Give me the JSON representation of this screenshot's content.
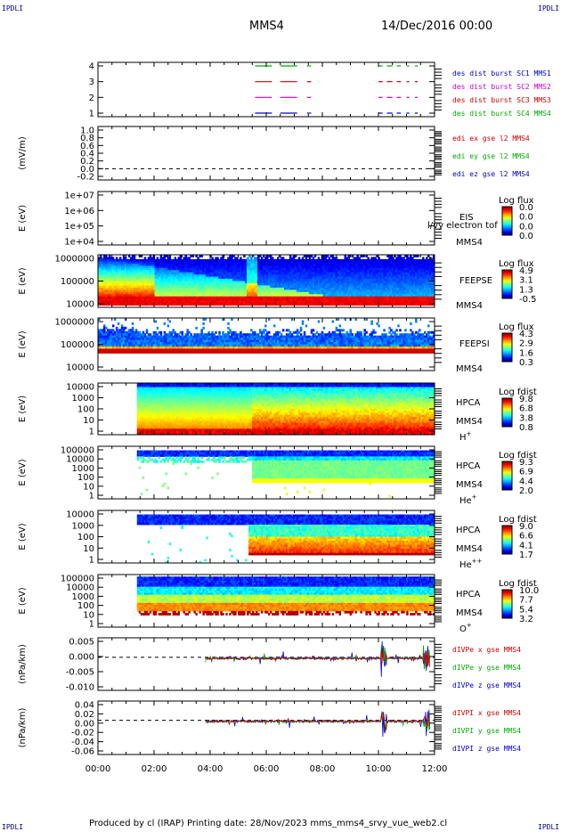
{
  "header": {
    "corner_label": "IPDLI",
    "title_left": "MMS4",
    "title_right": "14/Dec/2016 00:00"
  },
  "footer": "Produced by cl (IRAP)   Printing date: 28/Nov/2023   mms_mms4_srvy_vue_web2.cl",
  "time_axis": [
    "00:00",
    "02:00",
    "04:00",
    "06:00",
    "08:00",
    "10:00",
    "12:00"
  ],
  "panels": [
    {
      "id": "burst",
      "ylabel": "",
      "yticks": [
        "4",
        "3",
        "2",
        "1"
      ],
      "legend": [
        {
          "text": "des dist burst SC1 MMS1",
          "color": "#0000cc"
        },
        {
          "text": "des dist burst SC2 MMS2",
          "color": "#cc00cc"
        },
        {
          "text": "des dist burst SC3 MMS3",
          "color": "#cc0000"
        },
        {
          "text": "des dist burst SC4 MMS4",
          "color": "#00aa00"
        }
      ]
    },
    {
      "id": "edi",
      "ylabel": "(mV/m)",
      "yticks": [
        "1.0",
        "0.8",
        "0.6",
        "0.4",
        "0.2",
        "0.0",
        "-0.2"
      ],
      "legend": [
        {
          "text": "edi ex gse l2 MMS4",
          "color": "#cc0000"
        },
        {
          "text": "edi ey gse l2 MMS4",
          "color": "#00aa00"
        },
        {
          "text": "edi ez gse l2 MMS4",
          "color": "#0000cc"
        }
      ]
    },
    {
      "id": "eis",
      "ylabel": "E (eV)",
      "yticks": [
        "1e+07",
        "1e+06",
        "1e+05",
        "1e+04"
      ],
      "inst": [
        "EIS",
        "MMS4"
      ],
      "overlay": "l/vy electron tof",
      "cb_title": "Log flux",
      "cb_ticks": [
        "0.0",
        "0.0",
        "0.0",
        "0.0"
      ]
    },
    {
      "id": "feepse",
      "ylabel": "E (eV)",
      "yticks": [
        "1000000",
        "100000",
        "10000"
      ],
      "inst": [
        "FEEPSE",
        "MMS4"
      ],
      "cb_title": "Log flux",
      "cb_ticks": [
        "4.9",
        "3.1",
        "1.3",
        "-0.5"
      ]
    },
    {
      "id": "feepsi",
      "ylabel": "E (eV)",
      "yticks": [
        "1000000",
        "100000",
        "10000"
      ],
      "inst": [
        "FEEPSI",
        "MMS4"
      ],
      "cb_title": "Log flux",
      "cb_ticks": [
        "4.3",
        "2.9",
        "1.6",
        "0.3"
      ]
    },
    {
      "id": "hpca_h",
      "ylabel": "E (eV)",
      "yticks": [
        "10000",
        "1000",
        "100",
        "10",
        "1"
      ],
      "inst": [
        "HPCA",
        "MMS4"
      ],
      "species": "H",
      "sup": "+",
      "cb_title": "Log fdist",
      "cb_ticks": [
        "9.8",
        "6.8",
        "3.8",
        "0.8"
      ]
    },
    {
      "id": "hpca_he",
      "ylabel": "E (eV)",
      "yticks": [
        "100000",
        "10000",
        "1000",
        "100",
        "10",
        "1"
      ],
      "inst": [
        "HPCA",
        "MMS4"
      ],
      "species": "He",
      "sup": "+",
      "cb_title": "Log fdist",
      "cb_ticks": [
        "9.3",
        "6.9",
        "4.4",
        "2.0"
      ]
    },
    {
      "id": "hpca_hepp",
      "ylabel": "E (eV)",
      "yticks": [
        "10000",
        "1000",
        "100",
        "10",
        "1"
      ],
      "inst": [
        "HPCA",
        "MMS4"
      ],
      "species": "He",
      "sup": "++",
      "cb_title": "Log fdist",
      "cb_ticks": [
        "9.0",
        "6.6",
        "4.1",
        "1.7"
      ]
    },
    {
      "id": "hpca_o",
      "ylabel": "E (eV)",
      "yticks": [
        "100000",
        "10000",
        "1000",
        "100",
        "10",
        "1"
      ],
      "inst": [
        "HPCA",
        "MMS4"
      ],
      "species": "O",
      "sup": "+",
      "cb_title": "Log fdist",
      "cb_ticks": [
        "10.0",
        "7.7",
        "5.4",
        "3.2"
      ]
    },
    {
      "id": "divpe",
      "ylabel": "(nPa/km)",
      "yticks": [
        "0.005",
        "0.000",
        "-0.005",
        "-0.010"
      ],
      "legend": [
        {
          "text": "dIVPe x gse MMS4",
          "color": "#cc0000"
        },
        {
          "text": "dIVPe y gse MMS4",
          "color": "#00aa00"
        },
        {
          "text": "dIVPe z gse MMS4",
          "color": "#0000cc"
        }
      ]
    },
    {
      "id": "divpi",
      "ylabel": "(nPa/km)",
      "yticks": [
        "0.04",
        "0.02",
        "0.00",
        "-0.02",
        "-0.04",
        "-0.06"
      ],
      "legend": [
        {
          "text": "dIVPI x gse MMS4",
          "color": "#cc0000"
        },
        {
          "text": "dIVPI y gse MMS4",
          "color": "#00aa00"
        },
        {
          "text": "dIVPI z gse MMS4",
          "color": "#0000cc"
        }
      ]
    }
  ],
  "chart_data": {
    "type": "heatmap",
    "x_range_hours": [
      0,
      12
    ],
    "series_description_shown": "spectrograms and time series vs UT",
    "hpca_coverage_start": "01:22",
    "divp_coverage_start": "03:50"
  }
}
